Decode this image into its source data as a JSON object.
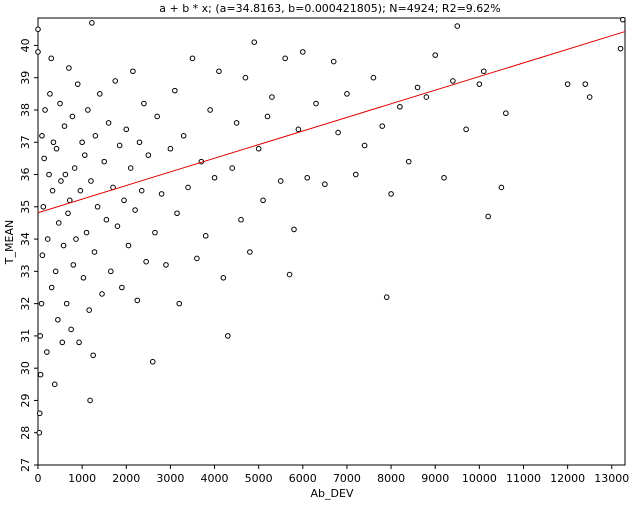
{
  "chart_data": {
    "type": "scatter",
    "title": "a + b * x; (a=34.8163, b=0.000421805); N=4924; R2=9.62%",
    "x_label": "Ab_DEV",
    "y_label": "T_MEAN",
    "xlim": [
      0,
      13300
    ],
    "ylim": [
      27,
      40.85
    ],
    "xticks": [
      0,
      1000,
      2000,
      3000,
      4000,
      5000,
      6000,
      7000,
      8000,
      9000,
      10000,
      11000,
      12000,
      13000
    ],
    "yticks": [
      27,
      28,
      29,
      30,
      31,
      32,
      33,
      34,
      35,
      36,
      37,
      38,
      39,
      40
    ],
    "series": [
      {
        "name": "T_MEAN",
        "color": "#000000",
        "x": [
          0,
          0,
          30,
          40,
          60,
          50,
          80,
          100,
          120,
          140,
          160,
          90,
          200,
          220,
          250,
          270,
          300,
          310,
          330,
          350,
          380,
          400,
          420,
          450,
          470,
          500,
          520,
          550,
          580,
          600,
          620,
          650,
          680,
          700,
          720,
          750,
          780,
          800,
          830,
          860,
          900,
          930,
          960,
          1000,
          1030,
          1060,
          1100,
          1130,
          1160,
          1200,
          1220,
          1180,
          1250,
          1280,
          1300,
          1350,
          1400,
          1450,
          1500,
          1550,
          1600,
          1650,
          1700,
          1750,
          1800,
          1850,
          1900,
          1950,
          2000,
          2050,
          2100,
          2150,
          2200,
          2250,
          2300,
          2350,
          2400,
          2450,
          2500,
          2600,
          2650,
          2700,
          2800,
          2900,
          3000,
          3100,
          3150,
          3200,
          3300,
          3400,
          3500,
          3600,
          3700,
          3800,
          3900,
          4000,
          4100,
          4200,
          4300,
          4400,
          4500,
          4600,
          4700,
          4800,
          4900,
          5000,
          5100,
          5200,
          5300,
          5500,
          5600,
          5700,
          5800,
          5900,
          6000,
          6100,
          6300,
          6500,
          6700,
          6800,
          7000,
          7200,
          7400,
          7600,
          7800,
          7900,
          8000,
          8200,
          8400,
          8600,
          8800,
          9000,
          9200,
          9400,
          9500,
          9700,
          10000,
          10100,
          10200,
          10500,
          10600,
          12000,
          12400,
          12500,
          13250,
          13200
        ],
        "values": [
          40.5,
          39.8,
          28,
          28.6,
          29.8,
          31,
          32,
          33.5,
          35,
          36.5,
          38,
          37.2,
          30.5,
          34,
          36,
          38.5,
          39.6,
          32.5,
          35.5,
          37,
          29.5,
          33,
          36.8,
          31.5,
          34.5,
          38.2,
          35.8,
          30.8,
          33.8,
          37.5,
          36,
          32,
          34.8,
          39.3,
          35.2,
          31.2,
          37.8,
          33.2,
          36.2,
          34,
          38.8,
          30.8,
          35.5,
          37,
          32.8,
          36.6,
          34.2,
          38,
          31.8,
          35.8,
          40.7,
          29,
          30.4,
          33.6,
          37.2,
          35,
          38.5,
          32.3,
          36.4,
          34.6,
          37.6,
          33,
          35.6,
          38.9,
          34.4,
          36.9,
          32.5,
          35.2,
          37.4,
          33.8,
          36.2,
          39.2,
          34.9,
          32.1,
          37,
          35.5,
          38.2,
          33.3,
          36.6,
          30.2,
          34.2,
          37.8,
          35.4,
          33.2,
          36.8,
          38.6,
          34.8,
          32,
          37.2,
          35.6,
          39.6,
          33.4,
          36.4,
          34.1,
          38,
          35.9,
          39.2,
          32.8,
          31,
          36.2,
          37.6,
          34.6,
          39,
          33.6,
          40.1,
          36.8,
          35.2,
          37.8,
          38.4,
          35.8,
          39.6,
          32.9,
          34.3,
          37.4,
          39.8,
          35.9,
          38.2,
          35.7,
          39.5,
          37.3,
          38.5,
          36,
          36.9,
          39,
          37.5,
          32.2,
          35.4,
          38.1,
          36.4,
          38.7,
          38.4,
          39.7,
          35.9,
          38.9,
          40.6,
          37.4,
          38.8,
          39.2,
          34.7,
          35.6,
          37.9,
          38.8,
          38.8,
          38.4,
          40.8,
          39.9
        ]
      },
      {
        "name": "fit",
        "type": "line",
        "color": "#e00000",
        "x": [
          0,
          13300
        ],
        "values": [
          34.816,
          40.43
        ]
      }
    ]
  }
}
